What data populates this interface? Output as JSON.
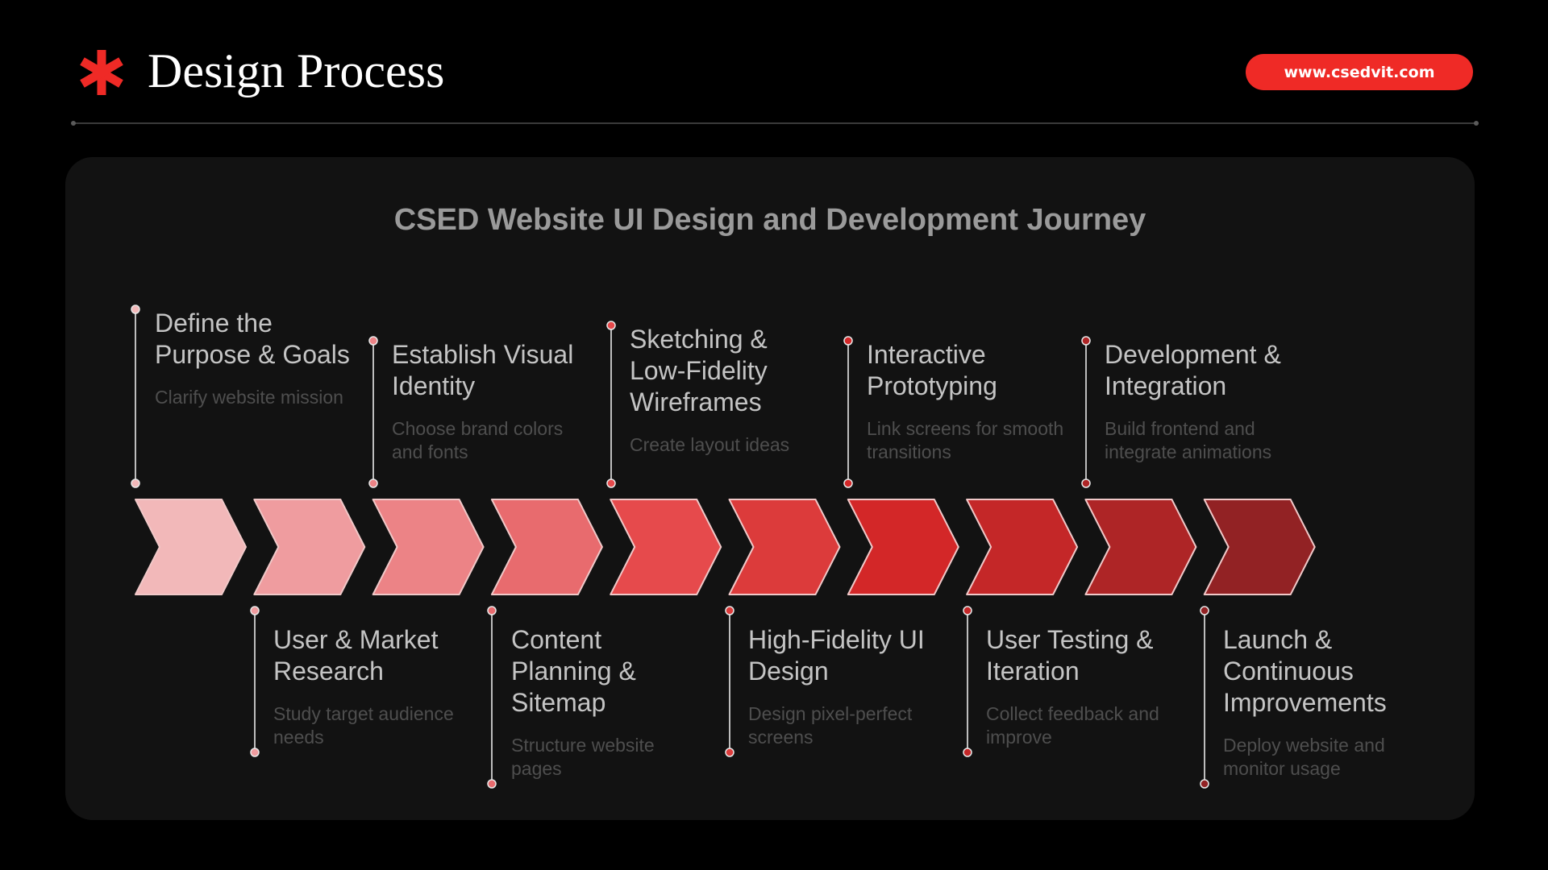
{
  "header": {
    "title": "Design Process",
    "url": "www.csedvit.com",
    "star_icon": "asterisk-icon",
    "accent_color": "#ef2a26"
  },
  "diagram": {
    "title": "CSED Website UI Design and Development Journey",
    "chevron_colors": [
      "#f2b8b9",
      "#ef9c9f",
      "#ec8386",
      "#e86b6e",
      "#e64a4c",
      "#dc3b3b",
      "#d32728",
      "#c42728",
      "#ae2526",
      "#922224"
    ],
    "steps": [
      {
        "title": "Define the Purpose & Goals",
        "desc": "Clarify website mission"
      },
      {
        "title": "User & Market Research",
        "desc": "Study target audience needs"
      },
      {
        "title": "Establish Visual Identity",
        "desc": "Choose brand colors and fonts"
      },
      {
        "title": "Content Planning & Sitemap",
        "desc": "Structure website pages"
      },
      {
        "title": "Sketching & Low-Fidelity Wireframes",
        "desc": "Create layout ideas"
      },
      {
        "title": "High-Fidelity UI Design",
        "desc": "Design pixel-perfect screens"
      },
      {
        "title": "Interactive Prototyping",
        "desc": "Link screens for smooth transitions"
      },
      {
        "title": "User Testing & Iteration",
        "desc": "Collect feedback and improve"
      },
      {
        "title": "Development & Integration",
        "desc": "Build frontend and integrate animations"
      },
      {
        "title": "Launch & Continuous Improvements",
        "desc": "Deploy website and monitor usage"
      }
    ]
  }
}
